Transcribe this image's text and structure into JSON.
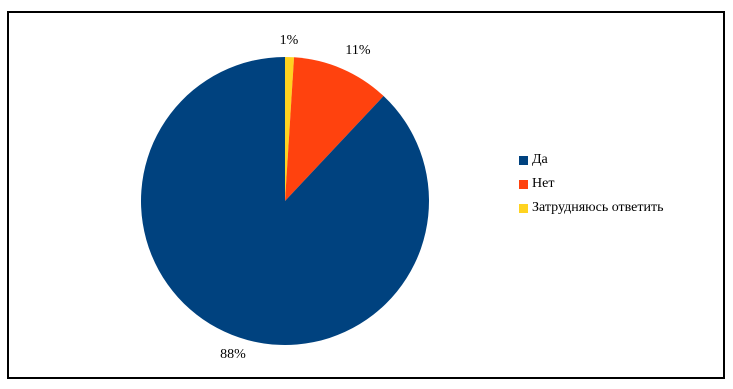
{
  "chart_data": {
    "type": "pie",
    "title": "",
    "categories": [
      "Да",
      "Нет",
      "Затрудняюсь ответить"
    ],
    "values": [
      88,
      11,
      1
    ],
    "labels": [
      "88%",
      "11%",
      "1%"
    ],
    "colors": [
      "#00427F",
      "#FF420E",
      "#FFD320"
    ],
    "legend_position": "right"
  }
}
